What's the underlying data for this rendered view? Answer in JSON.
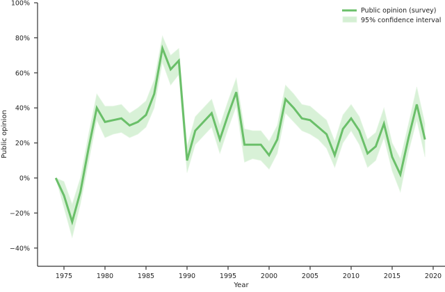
{
  "chart_data": {
    "type": "line",
    "title": "",
    "xlabel": "Year",
    "ylabel": "Public opinion",
    "xlim": [
      1971.5,
      2021
    ],
    "ylim": [
      -50,
      100
    ],
    "grid": false,
    "legend_position": "upper right",
    "x_ticks": [
      1975,
      1980,
      1985,
      1990,
      1995,
      2000,
      2005,
      2010,
      2015,
      2020
    ],
    "x_tick_labels": [
      "1975",
      "1980",
      "1985",
      "1990",
      "1995",
      "2000",
      "2005",
      "2010",
      "2015",
      "2020"
    ],
    "y_ticks": [
      -40,
      -20,
      0,
      20,
      40,
      60,
      80,
      100
    ],
    "y_tick_labels": [
      "−40%",
      "−20%",
      "0%",
      "20%",
      "40%",
      "60%",
      "80%",
      "100%"
    ],
    "legend": [
      "Public opinion (survey)",
      "95% confidence interval"
    ],
    "colors": {
      "line": "#6abf69",
      "band": "#d4efd3"
    },
    "x": [
      1974,
      1975,
      1976,
      1977,
      1978,
      1979,
      1980,
      1981,
      1982,
      1983,
      1984,
      1985,
      1986,
      1987,
      1988,
      1989,
      1990,
      1991,
      1992,
      1993,
      1994,
      1995,
      1996,
      1997,
      1998,
      1999,
      2000,
      2001,
      2002,
      2003,
      2004,
      2005,
      2006,
      2007,
      2008,
      2009,
      2010,
      2011,
      2012,
      2013,
      2014,
      2015,
      2016,
      2017,
      2018,
      2019
    ],
    "series": [
      {
        "name": "Public opinion (survey)",
        "values": [
          0,
          -10,
          -25,
          -8,
          17,
          40,
          32,
          33,
          34,
          30,
          32,
          36,
          48,
          74,
          62,
          67,
          10,
          27,
          32,
          37,
          22,
          36,
          49,
          19,
          19,
          19,
          13,
          22,
          45,
          40,
          34,
          33,
          29,
          25,
          13,
          28,
          34,
          27,
          14,
          18,
          31,
          12,
          2,
          23,
          42,
          22
        ]
      },
      {
        "name": "95% confidence interval (lower)",
        "values": [
          0,
          -17,
          -34,
          -15,
          9,
          33,
          23,
          25,
          26,
          23,
          25,
          29,
          40,
          66,
          53,
          59,
          3,
          19,
          24,
          29,
          14,
          28,
          41,
          9,
          11,
          10,
          5,
          14,
          37,
          32,
          27,
          25,
          22,
          17,
          6,
          20,
          27,
          19,
          6,
          10,
          23,
          4,
          -8,
          15,
          33,
          12
        ]
      },
      {
        "name": "95% confidence interval (upper)",
        "values": [
          0,
          -2,
          -15,
          0,
          25,
          48,
          41,
          41,
          42,
          37,
          40,
          44,
          56,
          81,
          70,
          74,
          18,
          35,
          40,
          45,
          30,
          44,
          57,
          28,
          27,
          27,
          21,
          30,
          53,
          48,
          42,
          41,
          37,
          33,
          21,
          36,
          42,
          35,
          22,
          26,
          40,
          20,
          11,
          31,
          52,
          31
        ]
      }
    ]
  },
  "legend": {
    "line_label": "Public opinion (survey)",
    "band_label": "95% confidence interval"
  },
  "axes": {
    "xlabel": "Year",
    "ylabel": "Public opinion"
  }
}
